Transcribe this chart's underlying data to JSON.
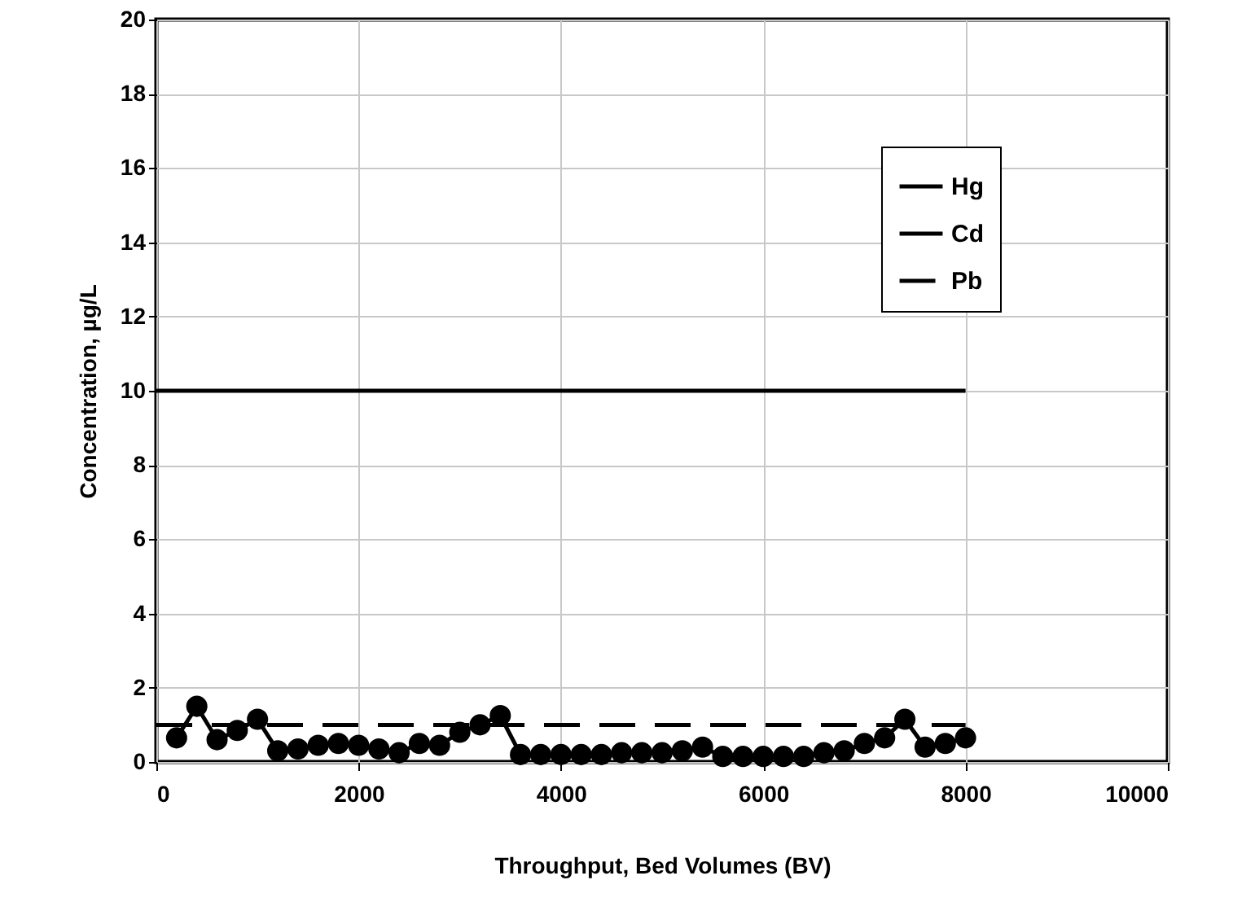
{
  "chart_data": {
    "type": "line",
    "xlabel": "Throughput, Bed Volumes (BV)",
    "ylabel": "Concentration, µg/L",
    "xlim": [
      0,
      10000
    ],
    "xticks": [
      0,
      2000,
      4000,
      6000,
      8000,
      10000
    ],
    "ylim": [
      0,
      20
    ],
    "yticks": [
      0,
      2,
      4,
      6,
      8,
      10,
      12,
      14,
      16,
      18,
      20
    ],
    "grid": true,
    "legend": "top right",
    "series": [
      {
        "name": "Hg",
        "color": "#000000",
        "marker": "circle",
        "x": [
          200,
          400,
          600,
          800,
          1000,
          1200,
          1400,
          1600,
          1800,
          2000,
          2200,
          2400,
          2600,
          2800,
          3000,
          3200,
          3400,
          3600,
          3800,
          4000,
          4200,
          4400,
          4600,
          4800,
          5000,
          5200,
          5400,
          5600,
          5800,
          6000,
          6200,
          6400,
          6600,
          6800,
          7000,
          7200,
          7400,
          7600,
          7800,
          8000
        ],
        "values": [
          0.65,
          1.5,
          0.6,
          0.85,
          1.15,
          0.3,
          0.35,
          0.45,
          0.5,
          0.45,
          0.35,
          0.25,
          0.5,
          0.45,
          0.8,
          1.0,
          1.25,
          0.2,
          0.2,
          0.2,
          0.2,
          0.2,
          0.25,
          0.25,
          0.25,
          0.3,
          0.4,
          0.15,
          0.15,
          0.15,
          0.15,
          0.15,
          0.25,
          0.3,
          0.5,
          0.65,
          1.15,
          0.4,
          0.5,
          0.65
        ]
      },
      {
        "name": "Cd",
        "color": "#000000",
        "x": [
          0,
          8000
        ],
        "values": [
          10,
          10
        ]
      },
      {
        "name": "Pb",
        "color": "#000000",
        "line_style": "dashed",
        "x": [
          0,
          8000
        ],
        "values": [
          1,
          1
        ]
      }
    ]
  }
}
